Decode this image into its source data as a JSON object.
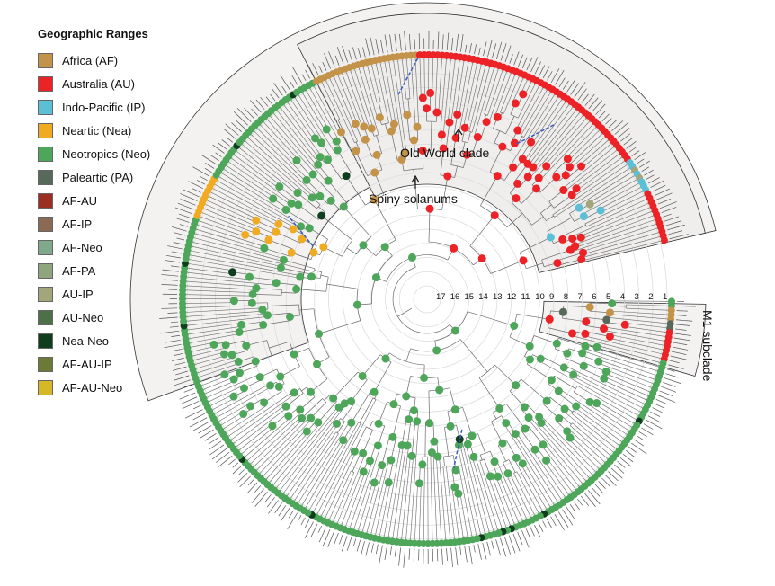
{
  "legend": {
    "title": "Geographic Ranges",
    "items": [
      {
        "label": "Africa (AF)",
        "color": "#c4934a"
      },
      {
        "label": "Australia (AU)",
        "color": "#ec2227"
      },
      {
        "label": "Indo-Pacific (IP)",
        "color": "#5bc0d6"
      },
      {
        "label": "Neartic (Nea)",
        "color": "#f0ab22"
      },
      {
        "label": "Neotropics (Neo)",
        "color": "#4ea65a"
      },
      {
        "label": "Paleartic (PA)",
        "color": "#56695a"
      },
      {
        "label": "AF-AU",
        "color": "#9a2f22"
      },
      {
        "label": "AF-IP",
        "color": "#8a6a52"
      },
      {
        "label": "AF-Neo",
        "color": "#7fa98a"
      },
      {
        "label": "AF-PA",
        "color": "#8ea57e"
      },
      {
        "label": "AU-IP",
        "color": "#a3a57a"
      },
      {
        "label": "AU-Neo",
        "color": "#4e7048"
      },
      {
        "label": "Nea-Neo",
        "color": "#0f3d1e"
      },
      {
        "label": "AF-AU-IP",
        "color": "#6b7a34"
      },
      {
        "label": "AF-AU-Neo",
        "color": "#d6b725"
      }
    ]
  },
  "annotations": {
    "old_world": "Old World clade",
    "spiny": "Spiny solanums",
    "m1": "M1 subclade"
  },
  "scale_labels": [
    "17",
    "16",
    "15",
    "14",
    "13",
    "12",
    "11",
    "10",
    "9",
    "8",
    "7",
    "6",
    "5",
    "4",
    "3",
    "2",
    "1"
  ],
  "colors": {
    "clade_fill": "#f3f2f1",
    "branch": "#6a6a6a",
    "ring": "#dcdcdc",
    "dispersal": "#3c5bbf"
  }
}
